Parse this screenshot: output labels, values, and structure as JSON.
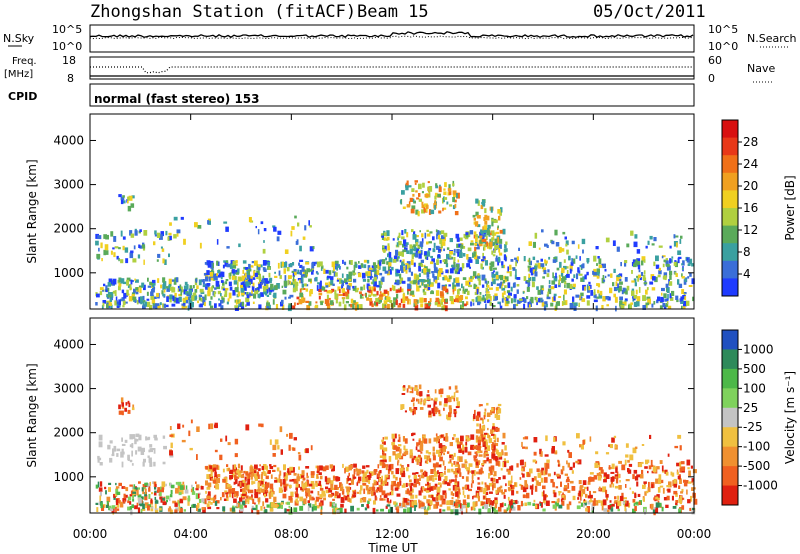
{
  "header": {
    "station": "Zhongshan Station (fitACF)",
    "beam": "Beam 15",
    "date": "05/Oct/2011"
  },
  "noise_panel": {
    "left_label": "N.Sky",
    "right_label": "N.Search",
    "y_top": "10^5",
    "y_bottom": "10^0"
  },
  "freq_panel": {
    "left_label_1": "Freq.",
    "left_label_2": "[MHz]",
    "right_label": "Nave",
    "left_top": "18",
    "left_bottom": "8",
    "right_top": "60",
    "right_bottom": "0"
  },
  "cpid_panel": {
    "label": "CPID",
    "text": "normal (fast stereo) 153"
  },
  "chart_data": [
    {
      "type": "heatmap",
      "name": "power",
      "ylabel": "Slant Range [km]",
      "ylim": [
        180,
        4600
      ],
      "yticks": [
        "1000",
        "2000",
        "3000",
        "4000"
      ],
      "colorbar": {
        "title": "Power [dB]",
        "ticks": [
          "4",
          "8",
          "12",
          "16",
          "20",
          "24",
          "28"
        ],
        "colors": [
          "#1f3bff",
          "#3a6ed8",
          "#3aa0a0",
          "#5aaa5a",
          "#b0d040",
          "#f0d020",
          "#f0a020",
          "#f07018",
          "#e83818",
          "#d81010"
        ]
      }
    },
    {
      "type": "heatmap",
      "name": "velocity",
      "ylabel": "Slant Range [km]",
      "ylim": [
        180,
        4600
      ],
      "yticks": [
        "1000",
        "2000",
        "3000",
        "4000"
      ],
      "colorbar": {
        "title": "Velocity [m s⁻¹]",
        "ticks": [
          "1000",
          "500",
          "100",
          "25",
          "-25",
          "-100",
          "-500",
          "-1000"
        ],
        "colors": [
          "#2050c0",
          "#2e8a5a",
          "#4db848",
          "#7fd25c",
          "#c4c4c4",
          "#f0c040",
          "#f09030",
          "#f06020",
          "#e02010"
        ]
      }
    }
  ],
  "xaxis": {
    "label": "Time UT",
    "ticks": [
      "00:00",
      "04:00",
      "08:00",
      "12:00",
      "16:00",
      "20:00",
      "00:00"
    ]
  }
}
